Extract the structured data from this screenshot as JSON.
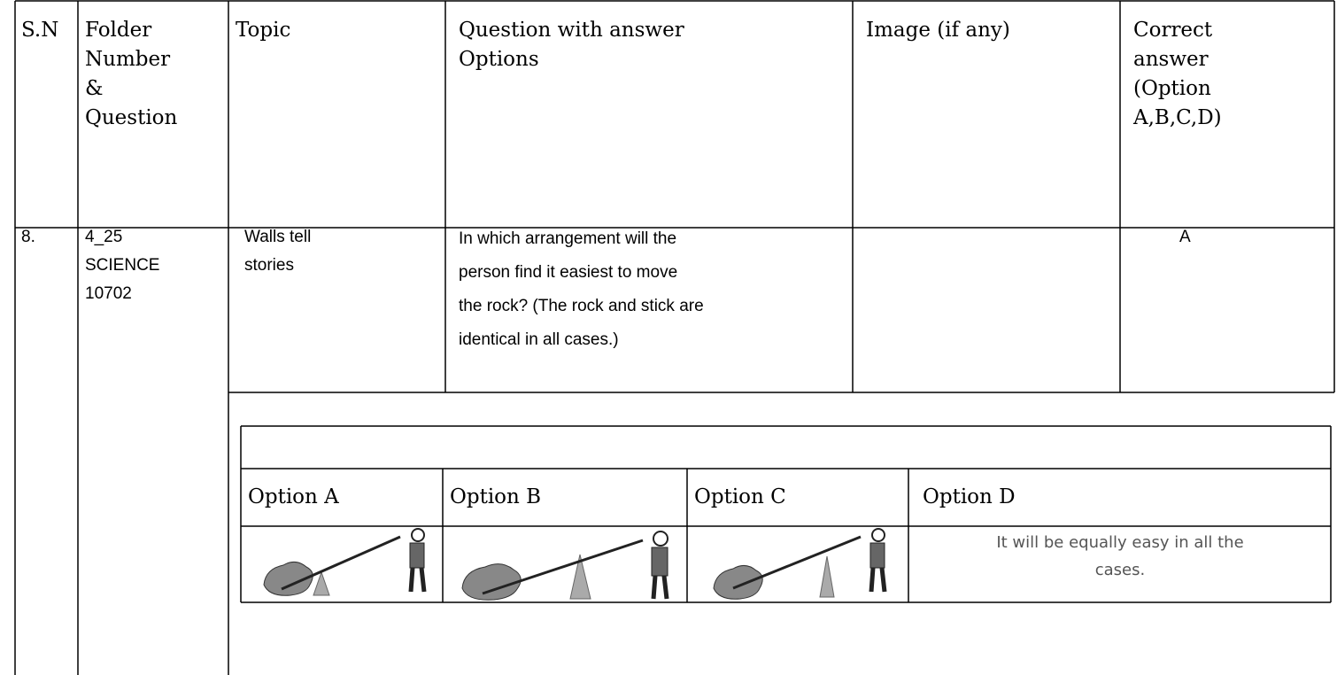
{
  "header": {
    "sn": "S.N",
    "folder": [
      "Folder",
      "Number",
      "&",
      "Question"
    ],
    "topic": "Topic",
    "question": [
      "Question with answer",
      "Options"
    ],
    "image": "Image (if any)",
    "answer": [
      "Correct",
      "answer",
      "(Option",
      "A,B,C,D)"
    ]
  },
  "row": {
    "sn": "8.",
    "folder": [
      "4_25",
      "SCIENCE",
      "10702"
    ],
    "topic": [
      "Walls tell",
      "stories"
    ],
    "question": [
      "In which arrangement will the",
      "person find it easiest to move",
      "the rock? (The rock and stick are",
      "identical in all cases.)"
    ],
    "answer": "A"
  },
  "options": {
    "labels": [
      "Option A",
      "Option B",
      "Option C",
      "Option D"
    ],
    "option_d_text": [
      "It will be equally easy in all the",
      "cases."
    ]
  }
}
